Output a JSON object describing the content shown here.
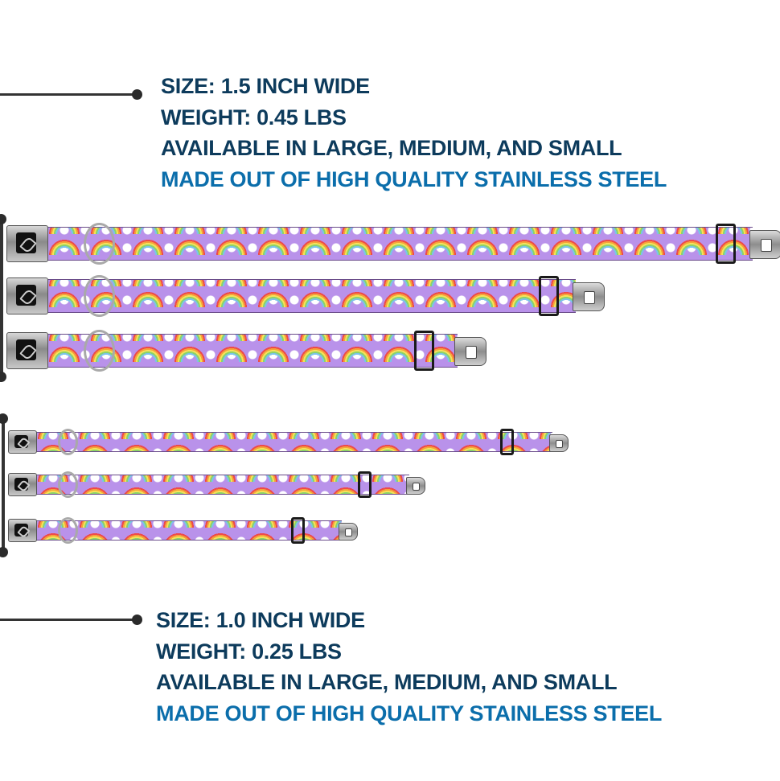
{
  "top_specs": {
    "size": "SIZE: 1.5 INCH WIDE",
    "weight": "WEIGHT: 0.45 LBS",
    "availability": "AVAILABLE IN LARGE, MEDIUM, AND SMALL",
    "material": "MADE OUT OF HIGH QUALITY STAINLESS STEEL"
  },
  "bottom_specs": {
    "size": "SIZE: 1.0 INCH WIDE",
    "weight": "WEIGHT: 0.25 LBS",
    "availability": "AVAILABLE IN LARGE, MEDIUM, AND SMALL",
    "material": "MADE OUT OF HIGH QUALITY STAINLESS STEEL"
  },
  "colors": {
    "heading": "#0d3b5c",
    "highlight": "#0b6eab",
    "strap": "#b992ea"
  },
  "collars": [
    "large-1.5in",
    "medium-1.5in",
    "small-1.5in",
    "large-1.0in",
    "medium-1.0in",
    "small-1.0in"
  ]
}
